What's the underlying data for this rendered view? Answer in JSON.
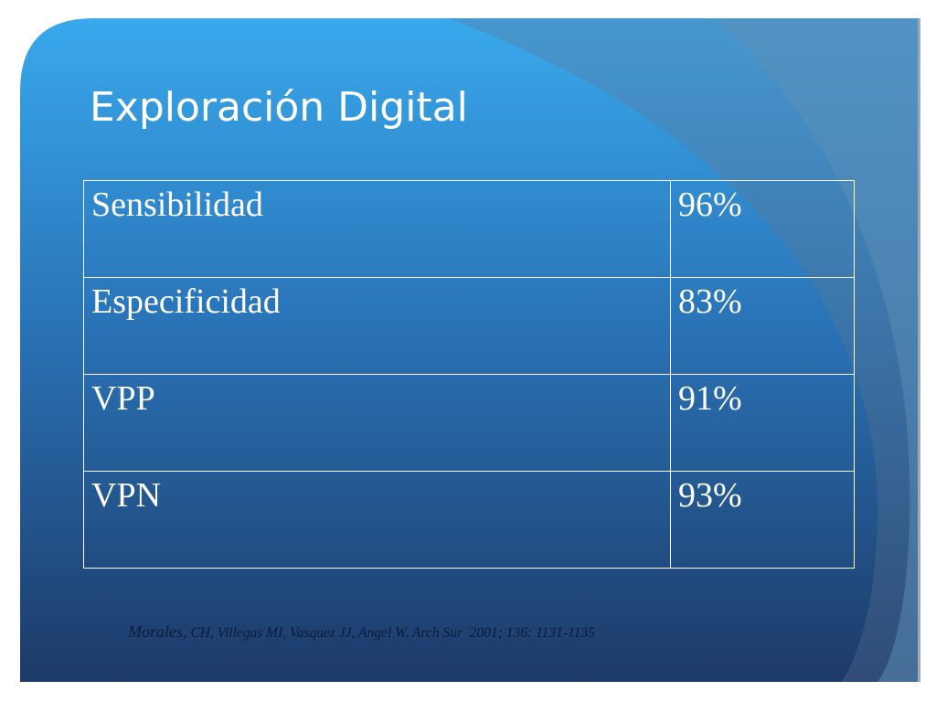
{
  "header": {
    "title": "Exploración Digital"
  },
  "table": {
    "rows": [
      [
        "Sensibilidad",
        "96%"
      ],
      [
        "Especificidad",
        "83%"
      ],
      [
        "VPP",
        "91%"
      ],
      [
        "VPN",
        "93%"
      ]
    ]
  },
  "citation": {
    "author": "Morales,",
    "text": " CH, Villegas MI, Vasquez JJ, Angel W. Arch Sur  2001; 136: 1131-1135"
  }
}
